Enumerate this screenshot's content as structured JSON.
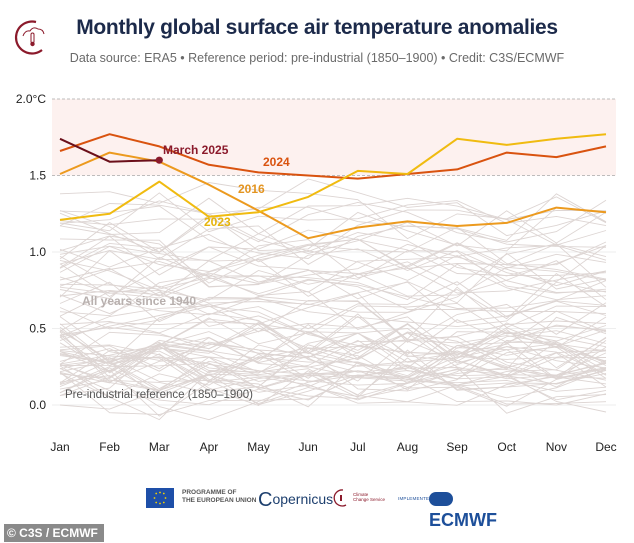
{
  "header": {
    "title": "Monthly global surface air temperature anomalies",
    "subtitle": "Data source: ERA5 • Reference period: pre-industrial (1850–1900) • Credit: C3S/ECMWF"
  },
  "chart_data": {
    "type": "line",
    "title": "Monthly global surface air temperature anomalies",
    "subtitle": "Data source: ERA5 • Reference period: pre-industrial (1850–1900) • Credit: C3S/ECMWF",
    "xlabel": "",
    "ylabel": "",
    "categories": [
      "Jan",
      "Feb",
      "Mar",
      "Apr",
      "May",
      "Jun",
      "Jul",
      "Aug",
      "Sep",
      "Oct",
      "Nov",
      "Dec"
    ],
    "ylim": [
      -0.25,
      2.0
    ],
    "yticks": [
      0.0,
      0.5,
      1.0,
      1.5,
      2.0
    ],
    "ytick_labels": [
      "0.0",
      "0.5",
      "1.0",
      "1.5",
      "2.0°C"
    ],
    "grid": "dashed reference lines at 1.5 and 2.0; shaded band between 1.5 and 2.0",
    "highlight_band": [
      1.5,
      2.0
    ],
    "series": [
      {
        "name": "2024",
        "color": "#d9530f",
        "values": [
          1.66,
          1.77,
          1.69,
          1.57,
          1.52,
          1.5,
          1.48,
          1.51,
          1.54,
          1.65,
          1.62,
          1.69
        ]
      },
      {
        "name": "2016",
        "color": "#ec9a1e",
        "values": [
          1.51,
          1.65,
          1.59,
          1.44,
          1.27,
          1.09,
          1.16,
          1.2,
          1.17,
          1.19,
          1.29,
          1.26
        ]
      },
      {
        "name": "2023",
        "color": "#f0bb10",
        "values": [
          1.21,
          1.25,
          1.46,
          1.23,
          1.26,
          1.36,
          1.53,
          1.51,
          1.74,
          1.7,
          1.74,
          1.77
        ]
      },
      {
        "name": "March 2025",
        "color": "#6b0f1a",
        "values": [
          1.74,
          1.59,
          1.6,
          null,
          null,
          null,
          null,
          null,
          null,
          null,
          null,
          null
        ]
      }
    ],
    "background_series": {
      "name": "All years since 1940",
      "color": "#ddd5d3",
      "years": "1940–2022",
      "approx_annual_levels": [
        0.3,
        0.35,
        0.28,
        0.32,
        0.4,
        0.33,
        0.22,
        0.2,
        0.18,
        0.15,
        0.1,
        0.22,
        0.25,
        0.3,
        0.15,
        0.12,
        0.08,
        0.3,
        0.35,
        0.28,
        0.25,
        0.32,
        0.3,
        0.33,
        0.1,
        0.14,
        0.2,
        0.22,
        0.18,
        0.32,
        0.28,
        0.12,
        0.22,
        0.38,
        0.1,
        0.15,
        0.05,
        0.38,
        0.3,
        0.42,
        0.48,
        0.52,
        0.4,
        0.6,
        0.42,
        0.4,
        0.48,
        0.62,
        0.7,
        0.58,
        0.78,
        0.75,
        0.55,
        0.58,
        0.68,
        0.7,
        0.62,
        0.8,
        0.98,
        0.72,
        0.74,
        0.85,
        0.88,
        0.82,
        0.92,
        0.98,
        0.9,
        0.96,
        0.94,
        1.02,
        1.12,
        0.98,
        1.0,
        1.03,
        1.12,
        1.28,
        1.2,
        1.14,
        1.08,
        1.25,
        1.3,
        1.18,
        1.2
      ]
    },
    "annotations": [
      {
        "text": "March 2025",
        "color": "#8b1a2b"
      },
      {
        "text": "2024",
        "color": "#d9530f"
      },
      {
        "text": "2016",
        "color": "#e39420"
      },
      {
        "text": "2023",
        "color": "#e6b40c"
      },
      {
        "text": "All years since 1940",
        "color": "#b8b0ae"
      },
      {
        "text": "Pre-industrial reference (1850–1900)",
        "color": "#555555"
      }
    ]
  },
  "footer": {
    "eu_text_line1": "PROGRAMME OF",
    "eu_text_line2": "THE EUROPEAN UNION",
    "copernicus": "opernicus",
    "copernicus_c": "C",
    "c3s_text_line1": "Climate",
    "c3s_text_line2": "Change Service",
    "implemented_by": "IMPLEMENTED BY",
    "ecmwf": "ECMWF",
    "credit": "© C3S / ECMWF"
  }
}
